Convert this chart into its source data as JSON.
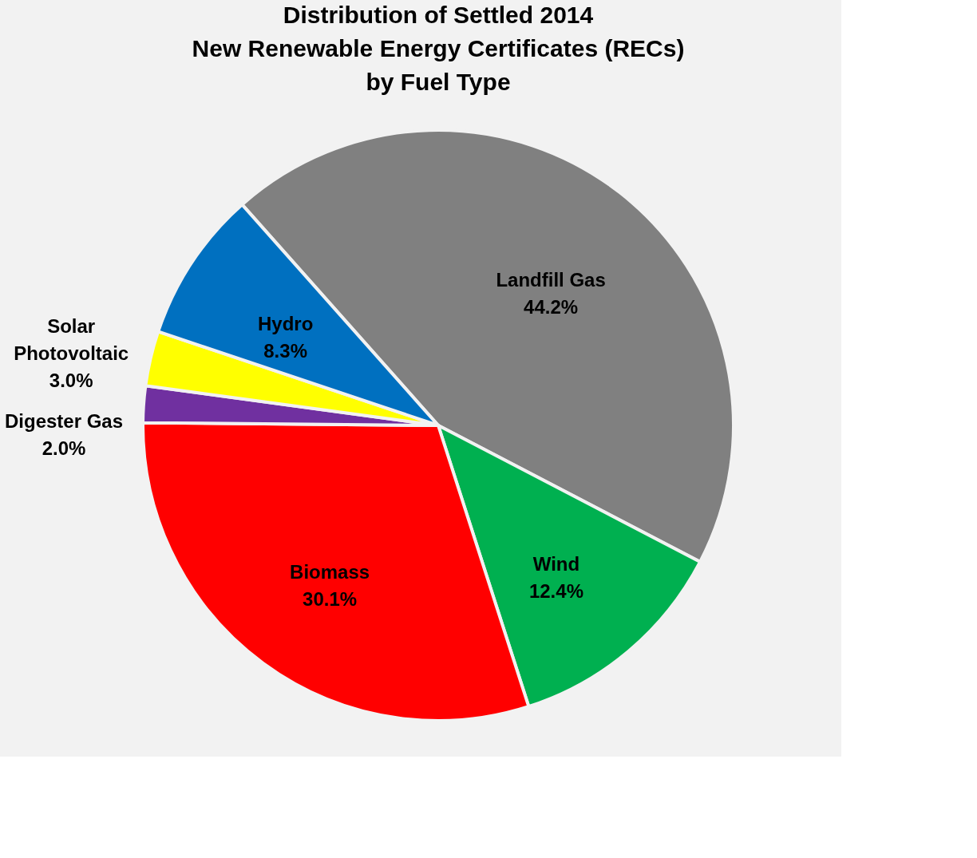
{
  "chart_data": {
    "type": "pie",
    "title": "Distribution of Settled 2014\nNew Renewable Energy  Certificates (RECs)\nby Fuel Type",
    "categories": [
      "Landfill Gas",
      "Wind",
      "Biomass",
      "Digester Gas",
      "Solar Photovoltaic",
      "Hydro"
    ],
    "values": [
      44.2,
      12.4,
      30.1,
      2.0,
      3.0,
      8.3
    ],
    "value_labels": [
      "44.2%",
      "12.4%",
      "30.1%",
      "2.0%",
      "3.0%",
      "8.3%"
    ],
    "colors": [
      "#808080",
      "#00b050",
      "#ff0000",
      "#7030a0",
      "#ffff00",
      "#0070c0"
    ],
    "legend": false
  }
}
